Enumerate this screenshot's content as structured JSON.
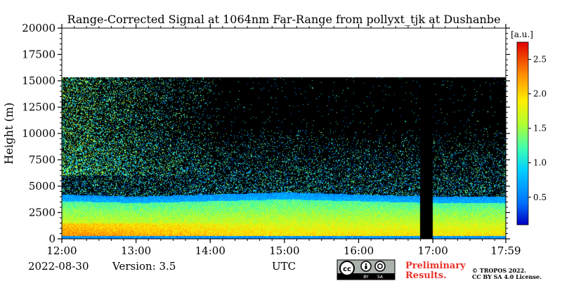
{
  "chart_data": {
    "type": "heatmap",
    "title": "Range-Corrected Signal at 1064nm Far-Range from pollyxt_tjk at Dushanbe",
    "ylabel": "Height (m)",
    "xlabel": "UTC",
    "x_ticks": [
      "12:00",
      "13:00",
      "14:00",
      "15:00",
      "16:00",
      "17:00",
      "17:59"
    ],
    "x_range_hours": [
      12.0,
      17.983
    ],
    "y_ticks": [
      0,
      2500,
      5000,
      7500,
      10000,
      12500,
      15000,
      17500,
      20000
    ],
    "y_range": [
      0,
      20000
    ],
    "data_top_height": 15300,
    "data_gap": {
      "start_hour": 16.83,
      "end_hour": 17.0
    },
    "boundary_layer_top": [
      {
        "hour": 12.0,
        "height": 4200
      },
      {
        "hour": 13.0,
        "height": 4000
      },
      {
        "hour": 14.0,
        "height": 4200
      },
      {
        "hour": 15.0,
        "height": 4400
      },
      {
        "hour": 16.0,
        "height": 4200
      },
      {
        "hour": 17.0,
        "height": 4000
      },
      {
        "hour": 17.98,
        "height": 4000
      }
    ],
    "colorbar": {
      "unit": "[a.u.]",
      "ticks": [
        "0.5",
        "1.0",
        "1.5",
        "2.0",
        "2.5"
      ],
      "range": [
        0.1,
        2.75
      ],
      "colormap": "jet"
    }
  },
  "footer": {
    "date": "2022-08-30",
    "version": "Version: 3.5",
    "preliminary_line1": "Preliminary",
    "preliminary_line2": "Results.",
    "copyright_line1": "© TROPOS 2022.",
    "copyright_line2": "CC BY SA 4.0 License.",
    "cc_badge": {
      "by": "BY",
      "sa": "SA"
    }
  },
  "colors": {
    "preliminary": "#e8332a",
    "background_plot": "#000000"
  }
}
